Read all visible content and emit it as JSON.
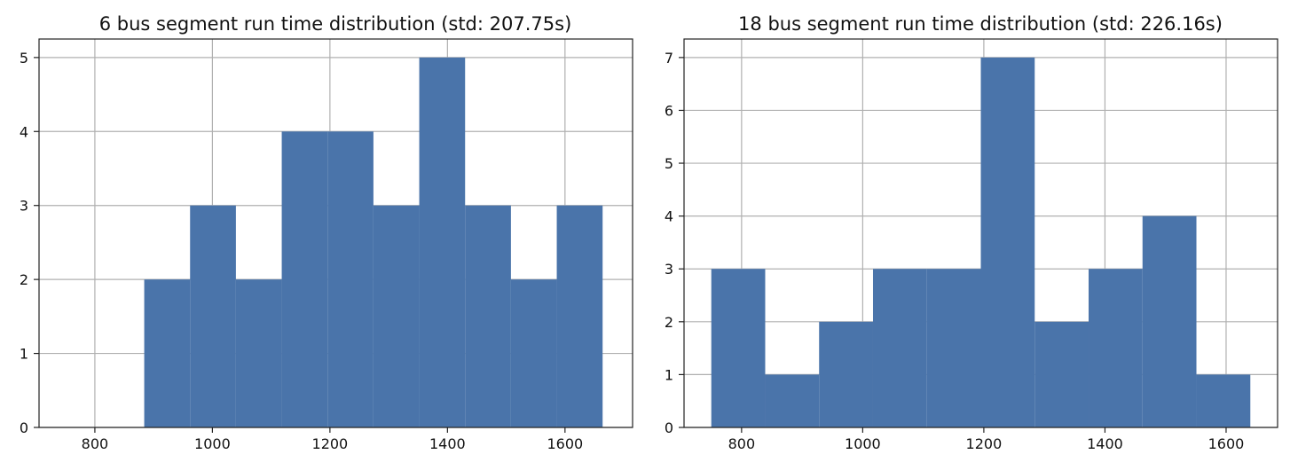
{
  "chart_data": [
    {
      "type": "bar",
      "subtype": "histogram",
      "title": "6 bus segment run time distribution (std: 207.75s)",
      "xlabel": "",
      "ylabel": "",
      "xlim": [
        705,
        1715
      ],
      "ylim": [
        0,
        5.25
      ],
      "xticks": [
        800,
        1000,
        1200,
        1400,
        1600
      ],
      "yticks": [
        0,
        1,
        2,
        3,
        4,
        5
      ],
      "grid": true,
      "color": "#4a74aa",
      "bins": [
        {
          "x0": 884,
          "x1": 962,
          "value": 2
        },
        {
          "x0": 962,
          "x1": 1040,
          "value": 3
        },
        {
          "x0": 1040,
          "x1": 1118,
          "value": 2
        },
        {
          "x0": 1118,
          "x1": 1196,
          "value": 4
        },
        {
          "x0": 1196,
          "x1": 1274,
          "value": 4
        },
        {
          "x0": 1274,
          "x1": 1352,
          "value": 3
        },
        {
          "x0": 1352,
          "x1": 1430,
          "value": 5
        },
        {
          "x0": 1430,
          "x1": 1508,
          "value": 3
        },
        {
          "x0": 1508,
          "x1": 1586,
          "value": 2
        },
        {
          "x0": 1586,
          "x1": 1664,
          "value": 3
        }
      ]
    },
    {
      "type": "bar",
      "subtype": "histogram",
      "title": "18 bus segment run time distribution (std: 226.16s)",
      "xlabel": "",
      "ylabel": "",
      "xlim": [
        705,
        1685
      ],
      "ylim": [
        0,
        7.35
      ],
      "xticks": [
        800,
        1000,
        1200,
        1400,
        1600
      ],
      "yticks": [
        0,
        1,
        2,
        3,
        4,
        5,
        6,
        7
      ],
      "grid": true,
      "color": "#4a74aa",
      "bins": [
        {
          "x0": 750,
          "x1": 839,
          "value": 3
        },
        {
          "x0": 839,
          "x1": 928,
          "value": 1
        },
        {
          "x0": 928,
          "x1": 1017,
          "value": 2
        },
        {
          "x0": 1017,
          "x1": 1106,
          "value": 3
        },
        {
          "x0": 1106,
          "x1": 1195,
          "value": 3
        },
        {
          "x0": 1195,
          "x1": 1284,
          "value": 7
        },
        {
          "x0": 1284,
          "x1": 1373,
          "value": 2
        },
        {
          "x0": 1373,
          "x1": 1462,
          "value": 3
        },
        {
          "x0": 1462,
          "x1": 1551,
          "value": 4
        },
        {
          "x0": 1551,
          "x1": 1640,
          "value": 1
        }
      ]
    }
  ]
}
